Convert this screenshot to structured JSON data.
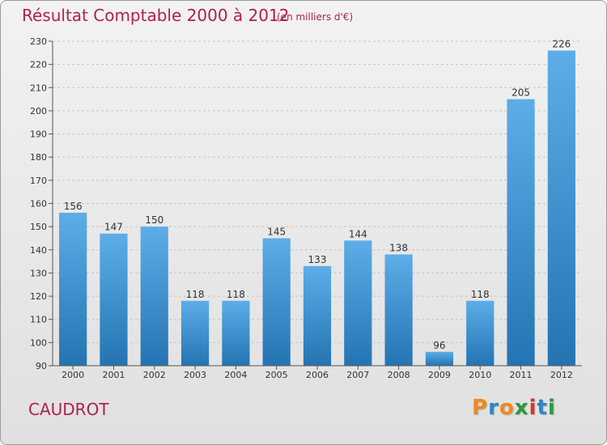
{
  "title": "Résultat Comptable 2000 à 2012",
  "subtitle": "(en milliers d'€)",
  "commune": "CAUDROT",
  "logo": {
    "letters": [
      "P",
      "r",
      "o",
      "x",
      "i",
      "t",
      "i"
    ],
    "colors": [
      "#f08a1c",
      "#2c86c9",
      "#f08a1c",
      "#2a9a3a",
      "#d9342b",
      "#2c86c9",
      "#2a9a3a"
    ]
  },
  "colors": {
    "bar_top": "#5dade8",
    "bar_bottom": "#2474b3",
    "title": "#b0204f"
  },
  "chart_data": {
    "type": "bar",
    "categories": [
      "2000",
      "2001",
      "2002",
      "2003",
      "2004",
      "2005",
      "2006",
      "2007",
      "2008",
      "2009",
      "2010",
      "2011",
      "2012"
    ],
    "values": [
      156,
      147,
      150,
      118,
      118,
      145,
      133,
      144,
      138,
      96,
      118,
      205,
      226
    ],
    "data_labels": [
      "156",
      "147",
      "150",
      "118",
      "118",
      "145",
      "133",
      "144",
      "138",
      "96",
      "118",
      "205",
      "226"
    ],
    "yticks": [
      90,
      100,
      110,
      120,
      130,
      140,
      150,
      160,
      170,
      180,
      190,
      200,
      210,
      220,
      230
    ],
    "ylim": [
      90,
      230
    ],
    "grid": "horizontal dashed"
  }
}
